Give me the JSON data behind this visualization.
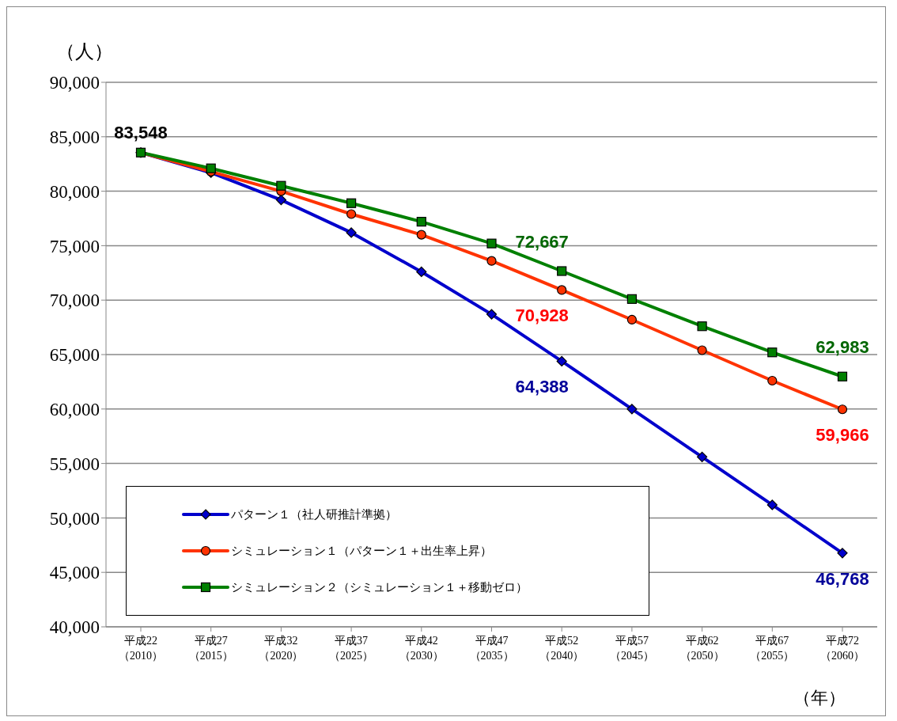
{
  "chart_data": {
    "type": "line",
    "ylabel": "（人）",
    "xlabel": "（年）",
    "categories": [
      "平成22\n（2010）",
      "平成27\n（2015）",
      "平成32\n（2020）",
      "平成37\n（2025）",
      "平成42\n（2030）",
      "平成47\n（2035）",
      "平成52\n（2040）",
      "平成57\n（2045）",
      "平成62\n（2050）",
      "平成67\n（2055）",
      "平成72\n（2060）"
    ],
    "series": [
      {
        "name": "パターン１（社人研推計準拠）",
        "color": "#0000cc",
        "marker": "diamond",
        "values": [
          83548,
          81700,
          79200,
          76200,
          72600,
          68700,
          64388,
          60000,
          55600,
          51200,
          46768
        ],
        "value_labels": [
          null,
          null,
          null,
          null,
          null,
          null,
          "64,388",
          null,
          null,
          null,
          "46,768"
        ]
      },
      {
        "name": "シミュレーション１（パターン１＋出生率上昇）",
        "color": "#ff3300",
        "marker": "circle",
        "values": [
          83548,
          81800,
          80000,
          77900,
          76000,
          73600,
          70928,
          68200,
          65400,
          62600,
          59966
        ],
        "value_labels": [
          null,
          null,
          null,
          null,
          null,
          null,
          "70,928",
          null,
          null,
          null,
          "59,966"
        ]
      },
      {
        "name": "シミュレーション２（シミュレーション１＋移動ゼロ）",
        "color": "#008000",
        "marker": "square",
        "values": [
          83548,
          82100,
          80500,
          78900,
          77200,
          75200,
          72667,
          70100,
          67600,
          65200,
          62983
        ],
        "value_labels": [
          null,
          null,
          null,
          null,
          null,
          null,
          "72,667",
          null,
          null,
          null,
          "62,983"
        ]
      }
    ],
    "annotations": [
      {
        "text": "83,548",
        "x": "平成22\n（2010）",
        "y": 83548
      }
    ],
    "ylim": [
      40000,
      90000
    ],
    "yticks": [
      {
        "value": 40000,
        "label": "40,000"
      },
      {
        "value": 45000,
        "label": "45,000"
      },
      {
        "value": 50000,
        "label": "50,000"
      },
      {
        "value": 55000,
        "label": "55,000"
      },
      {
        "value": 60000,
        "label": "60,000"
      },
      {
        "value": 65000,
        "label": "65,000"
      },
      {
        "value": 70000,
        "label": "70,000"
      },
      {
        "value": 75000,
        "label": "75,000"
      },
      {
        "value": 80000,
        "label": "80,000"
      },
      {
        "value": 85000,
        "label": "85,000"
      },
      {
        "value": 90000,
        "label": "90,000"
      }
    ],
    "grid": "y",
    "legend": "bottom left",
    "line_style": "solid"
  }
}
